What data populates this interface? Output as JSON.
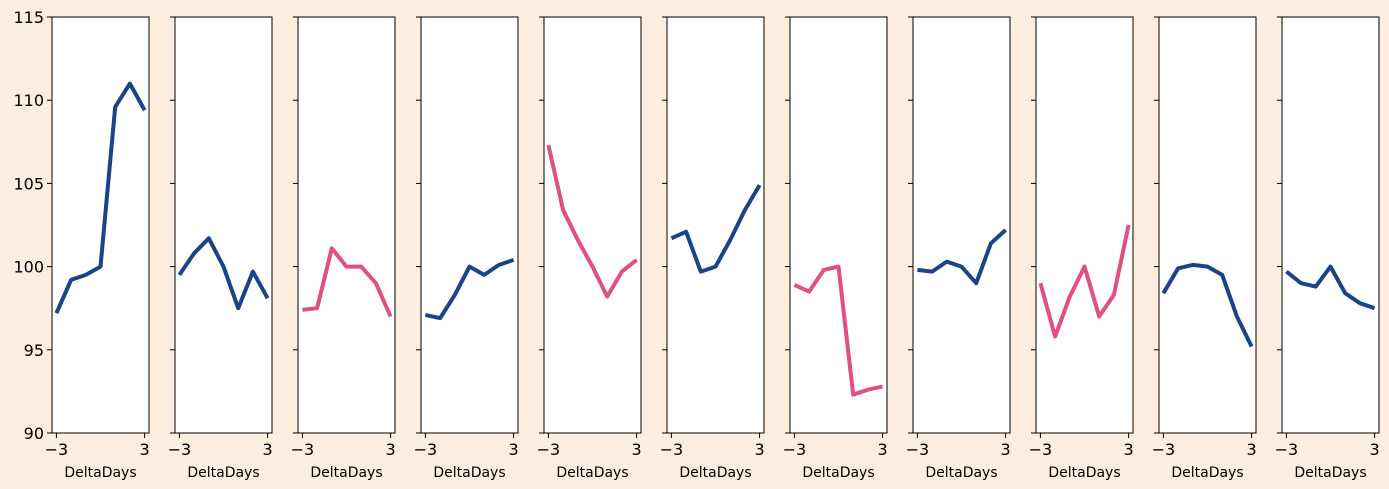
{
  "figure": {
    "background": "#fdeedf"
  },
  "colors": {
    "up": "#1a4489",
    "down": "#e05082"
  },
  "chart_data": {
    "type": "line",
    "layout": "small-multiples",
    "x": [
      -3,
      -2,
      -1,
      0,
      1,
      2,
      3
    ],
    "xlim": [
      -3.3,
      3.3
    ],
    "ylim": [
      90,
      115
    ],
    "yticks": [
      90,
      95,
      100,
      105,
      110,
      115
    ],
    "xticks": [
      -3,
      3
    ],
    "xtick_labels": [
      "−3",
      "3"
    ],
    "xlabel": "DeltaDays",
    "ylabel": "",
    "shared_y": true,
    "grid": false,
    "panels": [
      {
        "trend": "up",
        "values": [
          97.2,
          99.2,
          99.5,
          100.0,
          109.6,
          111.0,
          109.4
        ]
      },
      {
        "trend": "up",
        "values": [
          99.5,
          100.8,
          101.7,
          100.0,
          97.5,
          99.7,
          98.1
        ]
      },
      {
        "trend": "down",
        "values": [
          97.4,
          97.5,
          101.1,
          100.0,
          100.0,
          99.0,
          97.0
        ]
      },
      {
        "trend": "up",
        "values": [
          97.1,
          96.9,
          98.3,
          100.0,
          99.5,
          100.1,
          100.4
        ]
      },
      {
        "trend": "down",
        "values": [
          107.3,
          103.4,
          101.6,
          100.0,
          98.2,
          99.7,
          100.4
        ]
      },
      {
        "trend": "up",
        "values": [
          101.7,
          102.1,
          99.7,
          100.0,
          101.6,
          103.4,
          104.9
        ]
      },
      {
        "trend": "down",
        "values": [
          98.9,
          98.5,
          99.8,
          100.0,
          92.3,
          92.6,
          92.8
        ]
      },
      {
        "trend": "up",
        "values": [
          99.8,
          99.7,
          100.3,
          100.0,
          99.0,
          101.4,
          102.2
        ]
      },
      {
        "trend": "down",
        "values": [
          99.0,
          95.8,
          98.2,
          100.0,
          97.0,
          98.3,
          102.5
        ]
      },
      {
        "trend": "up",
        "values": [
          98.4,
          99.9,
          100.1,
          100.0,
          99.5,
          97.0,
          95.2
        ]
      },
      {
        "trend": "up",
        "values": [
          99.7,
          99.0,
          98.8,
          100.0,
          98.4,
          97.8,
          97.5
        ]
      }
    ]
  }
}
